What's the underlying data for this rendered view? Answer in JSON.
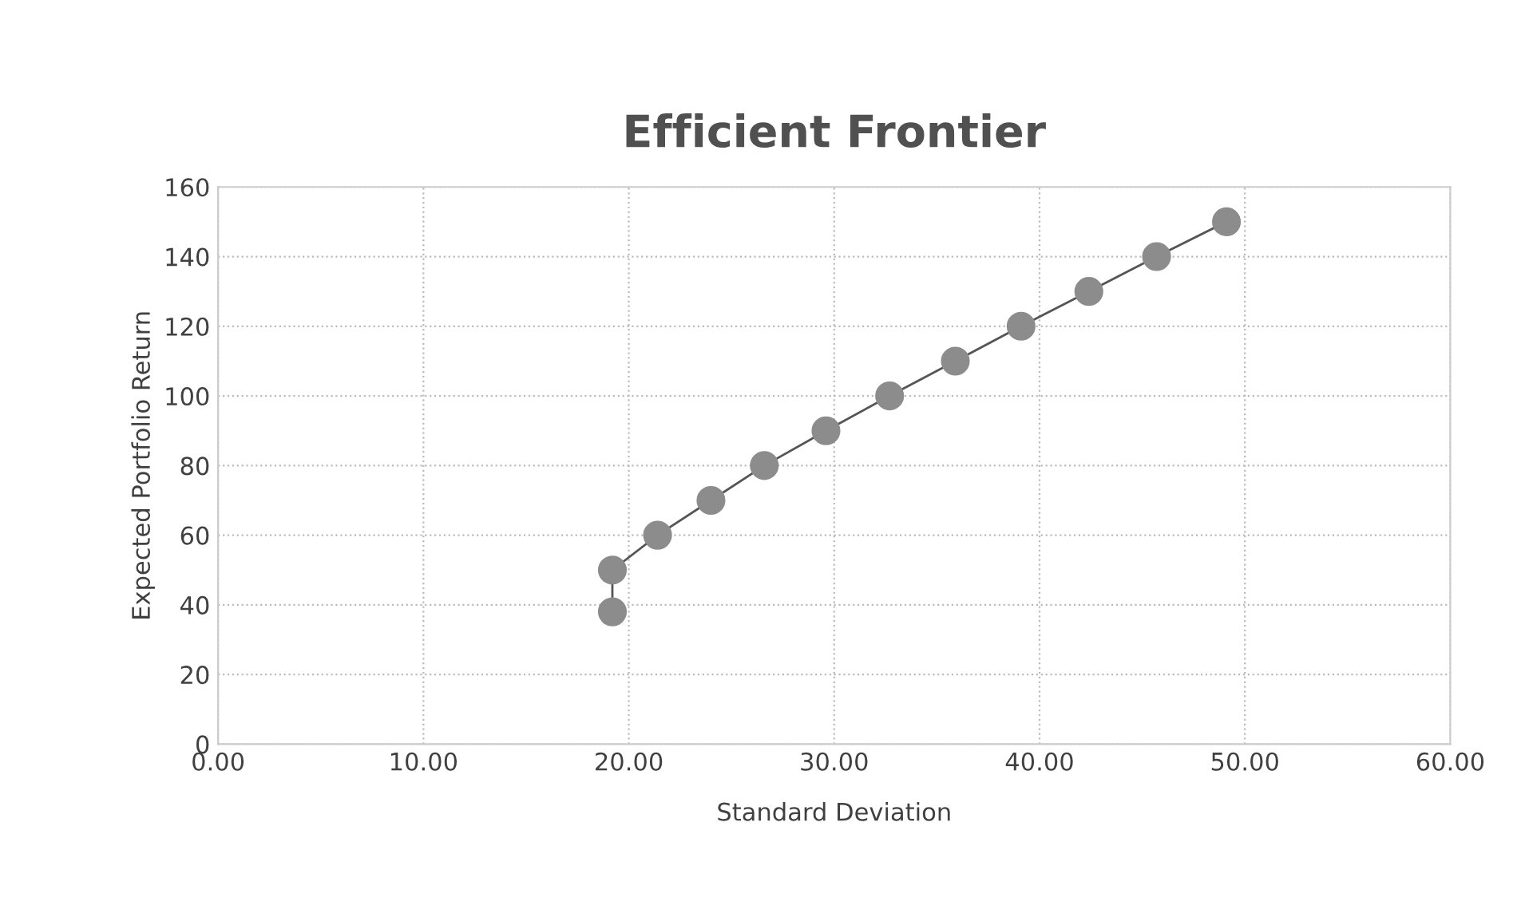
{
  "chart_data": {
    "type": "line",
    "title": "Efficient Frontier",
    "xlabel": "Standard Deviation",
    "ylabel": "Expected Portfolio Return",
    "series": [
      {
        "color": "#8c8c8c",
        "x": [
          19.2,
          19.2,
          21.4,
          24.0,
          26.6,
          29.6,
          32.7,
          35.9,
          39.1,
          42.4,
          45.7,
          49.1
        ],
        "values": [
          38,
          50,
          60,
          70,
          80,
          90,
          100,
          110,
          120,
          130,
          140,
          150
        ]
      }
    ],
    "xlim": [
      0,
      60
    ],
    "xticks": [
      {
        "value": 0,
        "label": "0.00"
      },
      {
        "value": 10,
        "label": "10.00"
      },
      {
        "value": 20,
        "label": "20.00"
      },
      {
        "value": 30,
        "label": "30.00"
      },
      {
        "value": 40,
        "label": "40.00"
      },
      {
        "value": 50,
        "label": "50.00"
      },
      {
        "value": 60,
        "label": "60.00"
      }
    ],
    "ylim": [
      0,
      160
    ],
    "yticks": [
      0,
      20,
      40,
      60,
      80,
      100,
      120,
      140,
      160
    ],
    "grid": true,
    "marker": "circle",
    "line_style": "solid"
  }
}
